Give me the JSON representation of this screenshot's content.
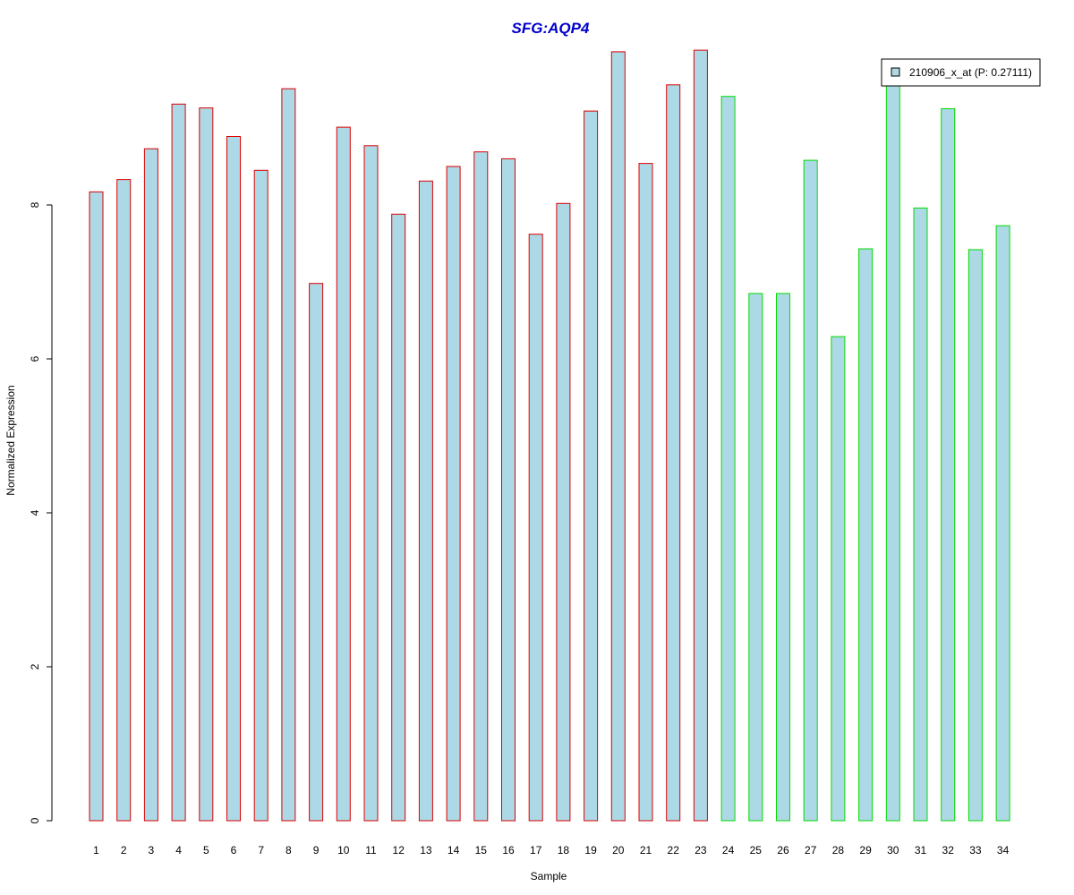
{
  "chart_data": {
    "type": "bar",
    "title": "SFG:AQP4",
    "xlabel": "Sample",
    "ylabel": "Normalized Expression",
    "categories": [
      "1",
      "2",
      "3",
      "4",
      "5",
      "6",
      "7",
      "8",
      "9",
      "10",
      "11",
      "12",
      "13",
      "14",
      "15",
      "16",
      "17",
      "18",
      "19",
      "20",
      "21",
      "22",
      "23",
      "24",
      "25",
      "26",
      "27",
      "28",
      "29",
      "30",
      "31",
      "32",
      "33",
      "34"
    ],
    "series": [
      {
        "name": "210906_x_at (P: 0.27111)",
        "values": [
          8.17,
          8.33,
          8.73,
          9.31,
          9.26,
          8.89,
          8.45,
          9.51,
          6.98,
          9.01,
          8.77,
          7.88,
          8.31,
          8.5,
          8.69,
          8.6,
          7.62,
          8.02,
          9.22,
          9.99,
          8.54,
          9.56,
          10.01,
          9.41,
          6.85,
          6.85,
          8.58,
          6.29,
          7.43,
          9.71,
          7.96,
          9.25,
          7.42,
          7.73
        ]
      }
    ],
    "groups": [
      {
        "samples": "1-23",
        "border_color": "#dd0000"
      },
      {
        "samples": "24-34",
        "border_color": "#00dd00"
      }
    ],
    "yticks": [
      0,
      2,
      4,
      6,
      8
    ],
    "ylim": [
      0,
      10
    ],
    "grid": false,
    "legend_position": "top-right",
    "colors": {
      "bar_fill": "#add8e6",
      "title": "#0000cc",
      "group1_border": "#dd0000",
      "group2_border": "#00dd00"
    }
  }
}
